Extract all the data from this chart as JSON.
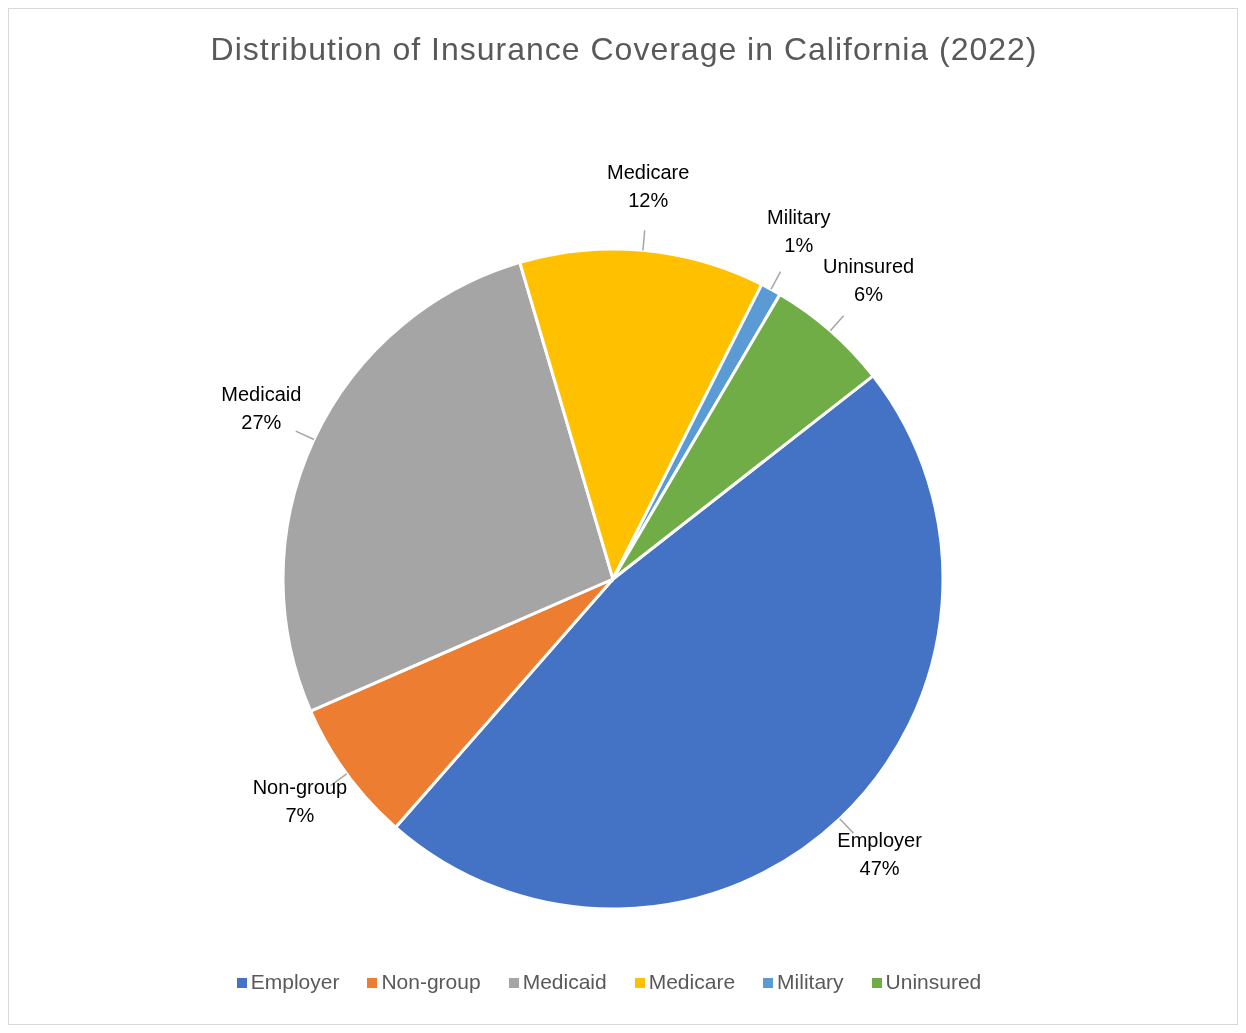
{
  "chart_data": {
    "type": "pie",
    "title": "Distribution of Insurance Coverage in California (2022)",
    "categories": [
      "Employer",
      "Non-group",
      "Medicaid",
      "Medicare",
      "Military",
      "Uninsured"
    ],
    "values": [
      47,
      7,
      27,
      12,
      1,
      6
    ],
    "colors": [
      "#4472c4",
      "#ed7d31",
      "#a5a5a5",
      "#ffc000",
      "#5b9bd5",
      "#70ad47"
    ],
    "value_labels": [
      "47%",
      "7%",
      "27%",
      "12%",
      "1%",
      "6%"
    ],
    "legend": "bottom"
  }
}
